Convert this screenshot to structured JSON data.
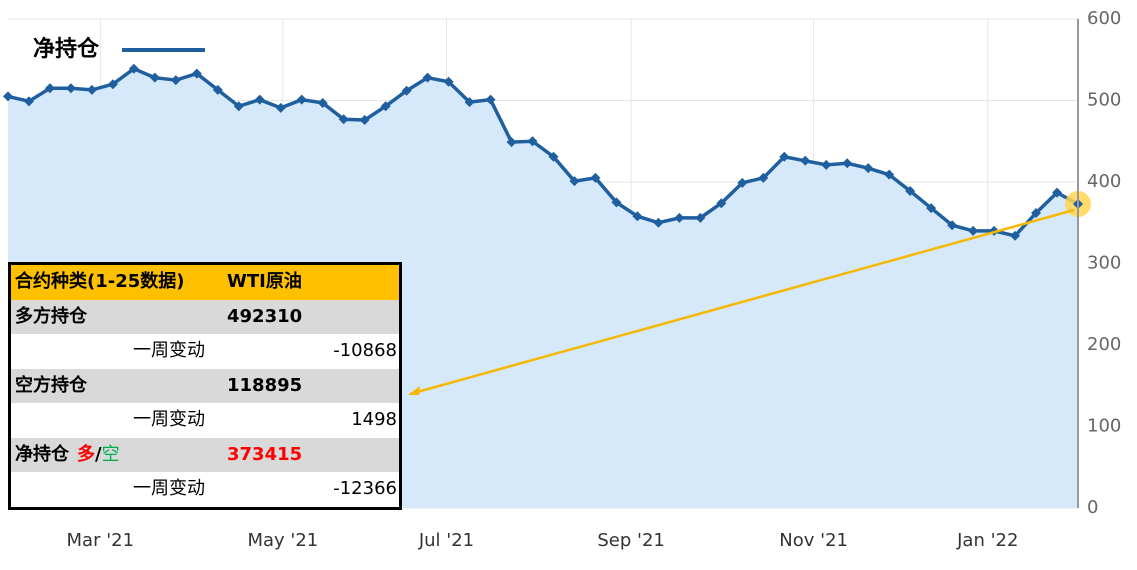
{
  "chart_data": {
    "type": "area",
    "categories": [
      null,
      null,
      null,
      null,
      null,
      null,
      null,
      null,
      null,
      null,
      null,
      null,
      null,
      null,
      null,
      null,
      null,
      null,
      null,
      null,
      null,
      null,
      null,
      null,
      null,
      null,
      null,
      null,
      null,
      null,
      null,
      null,
      null,
      null,
      null,
      null,
      null,
      null,
      null,
      null,
      null,
      null,
      null,
      null,
      null,
      null,
      null,
      null,
      null,
      null,
      null,
      null
    ],
    "series": [
      {
        "name": "净持仓",
        "color": "#1f5f9f",
        "fill": "#d6e9fb",
        "values": [
          505,
          499,
          515,
          515,
          513,
          520,
          539,
          528,
          525,
          533,
          513,
          493,
          501,
          491,
          501,
          497,
          477,
          476,
          493,
          512,
          528,
          523,
          498,
          501,
          449,
          450,
          431,
          401,
          405,
          375,
          358,
          350,
          356,
          356,
          374,
          399,
          405,
          431,
          426,
          421,
          423,
          417,
          409,
          389,
          368,
          347,
          340,
          340,
          334,
          362,
          387,
          373
        ]
      }
    ],
    "xticks": [
      {
        "value": 4.4,
        "label": "Mar '21"
      },
      {
        "value": 13.1,
        "label": "May '21"
      },
      {
        "value": 20.9,
        "label": "Jul '21"
      },
      {
        "value": 29.7,
        "label": "Sep '21"
      },
      {
        "value": 38.4,
        "label": "Nov '21"
      },
      {
        "value": 46.7,
        "label": "Jan '22"
      }
    ],
    "ylim": [
      0,
      600
    ],
    "yticks": [
      0,
      100,
      200,
      300,
      400,
      500,
      600
    ],
    "grid": true,
    "legend": "top-left"
  },
  "table": {
    "header": [
      "合约种类(1-25数据)",
      "WTI原油"
    ],
    "rows": [
      {
        "label": "多方持仓",
        "value": 492310
      },
      {
        "label": "一周变动",
        "value": -10868
      },
      {
        "label": "空方持仓",
        "value": 118895
      },
      {
        "label": "一周变动",
        "value": 1498
      },
      {
        "label_parts": [
          "净持仓",
          "多",
          "/",
          "空"
        ],
        "value": 373415
      },
      {
        "label": "一周变动",
        "value": -12366
      }
    ]
  }
}
